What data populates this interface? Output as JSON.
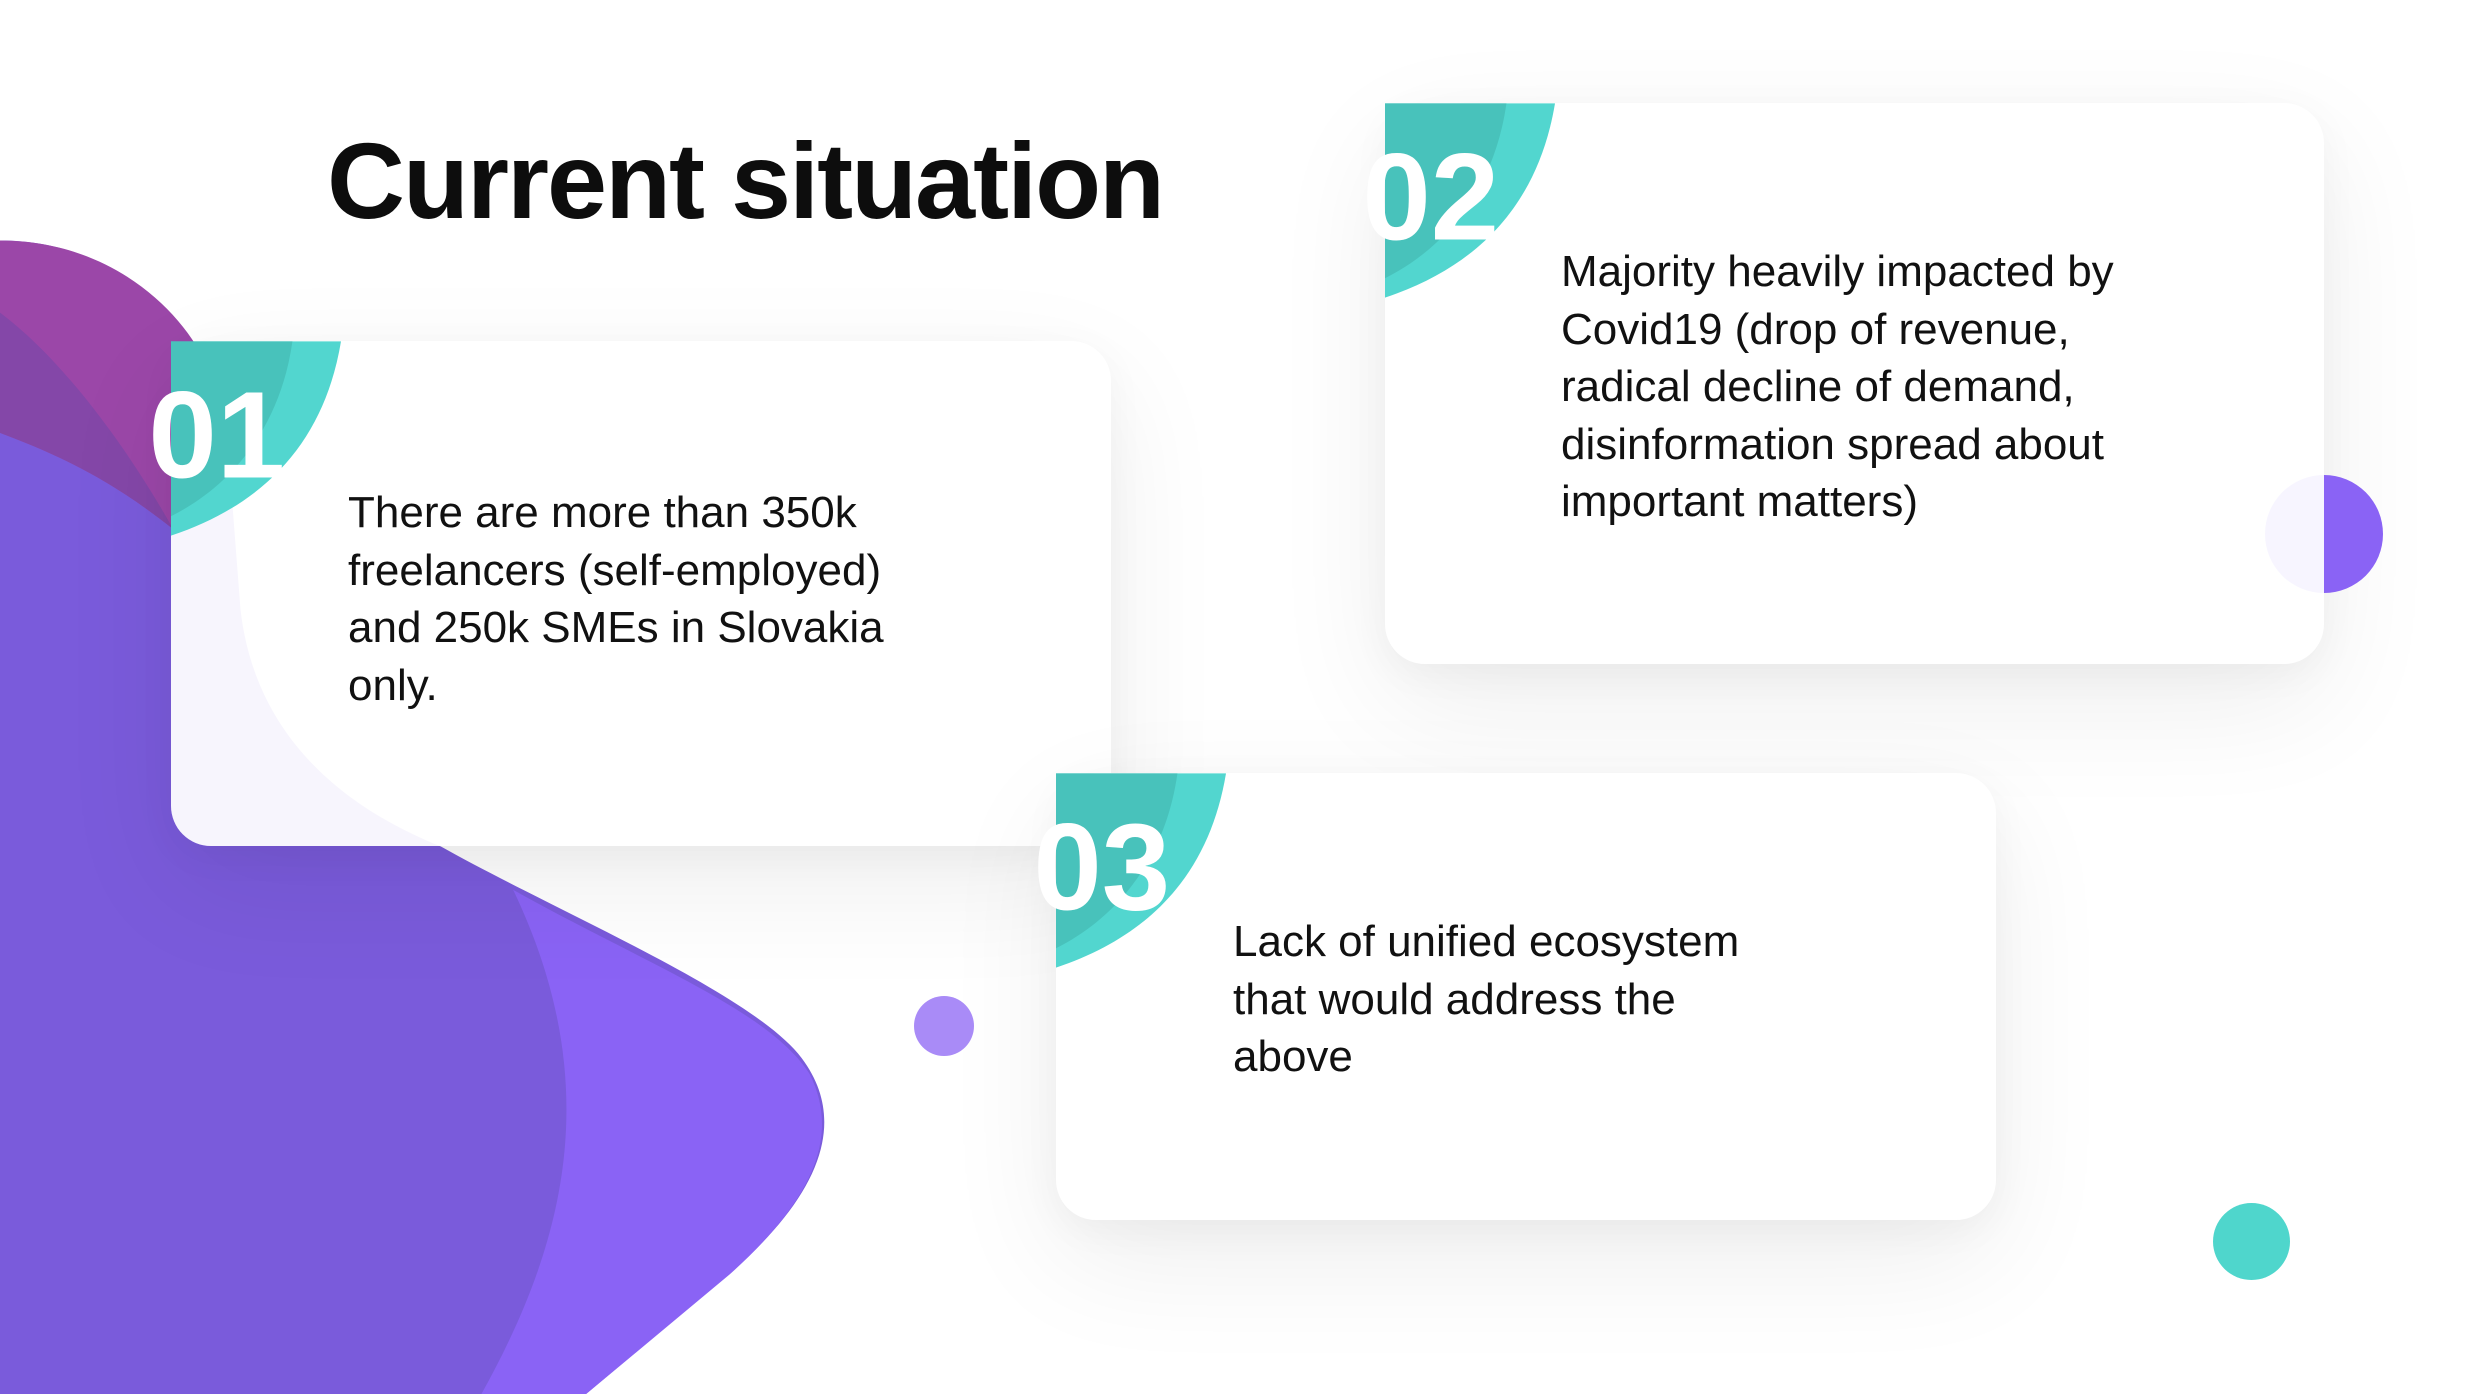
{
  "title": "Current situation",
  "colors": {
    "teal": "#52d6cf",
    "teal_dark": "#48c2bb",
    "purple": "#8a63f5",
    "purple_dark": "#7a5bdb",
    "magenta": "#9b47a8",
    "lavender_dot": "#a98bf7"
  },
  "cards": [
    {
      "number": "01",
      "text": "There are more than 350k freelancers (self-employed) and 250k SMEs in Slovakia only."
    },
    {
      "number": "02",
      "text": "Majority heavily impacted by Covid19 (drop of revenue, radical decline of demand, disinformation spread about important matters)"
    },
    {
      "number": "03",
      "text": "Lack of unified ecosystem that would address the above"
    }
  ]
}
